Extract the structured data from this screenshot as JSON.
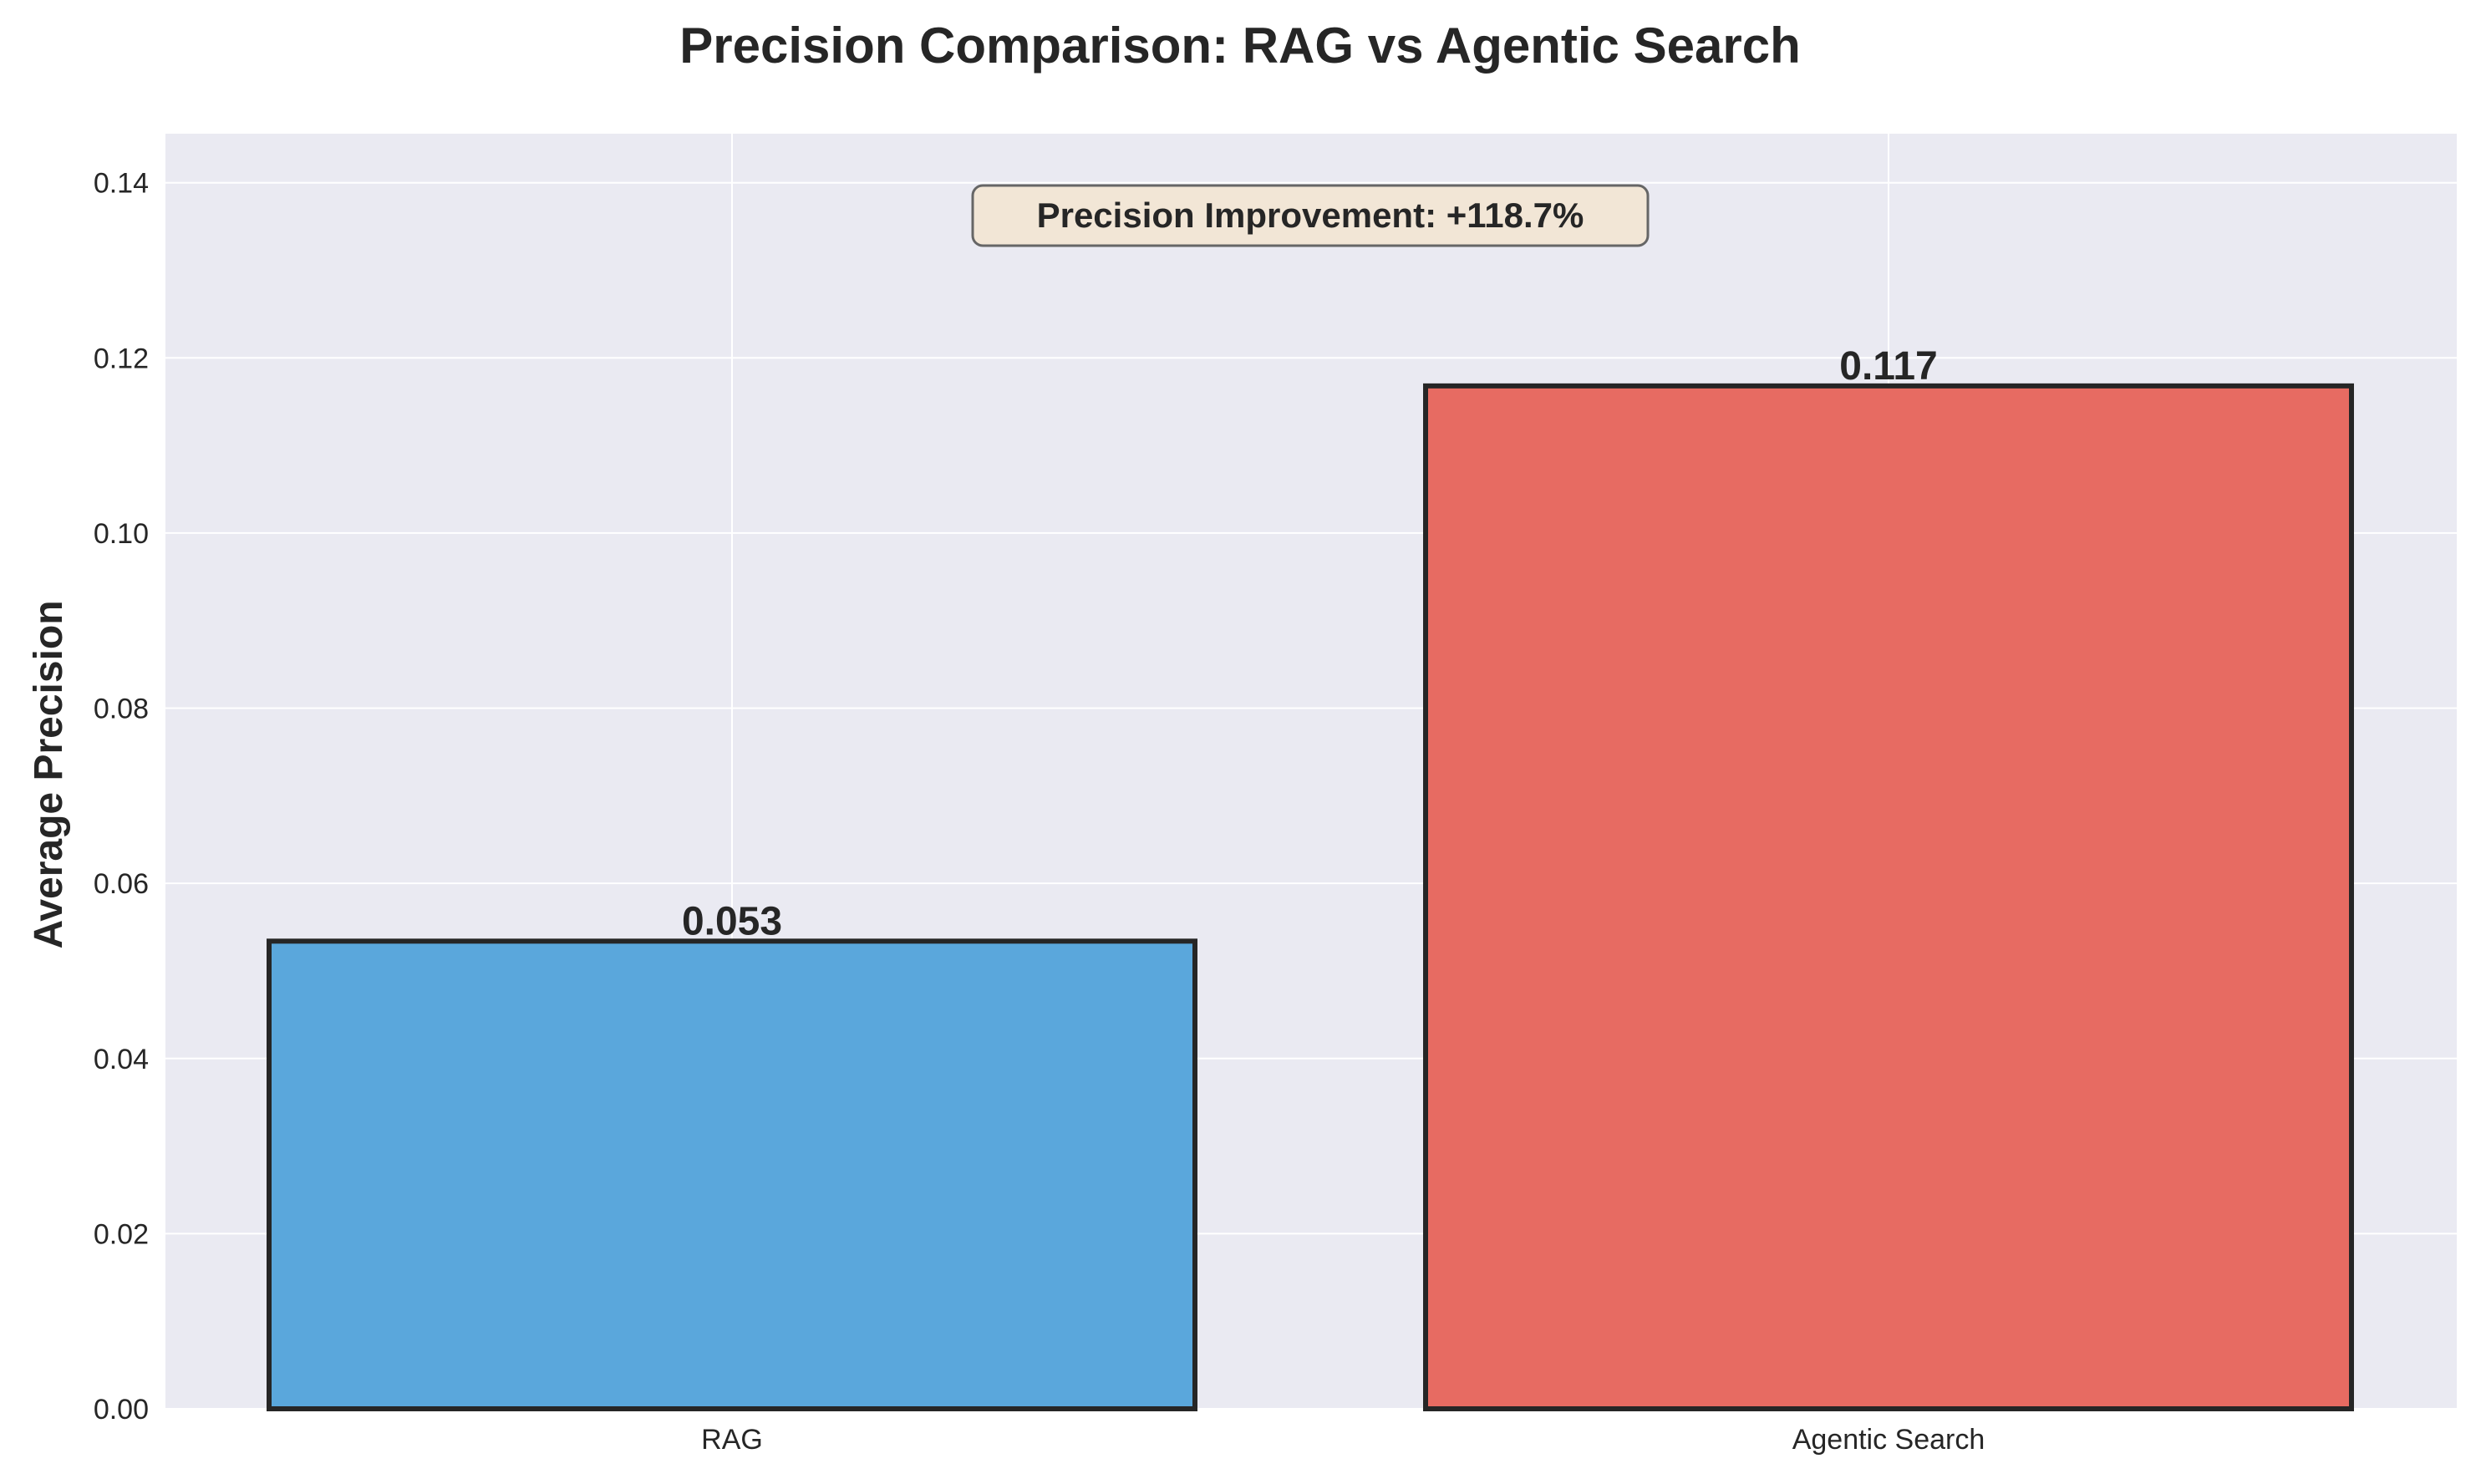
{
  "chart_data": {
    "type": "bar",
    "title": "Precision Comparison: RAG vs Agentic Search",
    "xlabel": "",
    "ylabel": "Average Precision",
    "categories": [
      "RAG",
      "Agentic Search"
    ],
    "values": [
      0.0534,
      0.1168
    ],
    "data_labels": [
      "0.053",
      "0.117"
    ],
    "colors": [
      "#5aa7dc",
      "#e76b62"
    ],
    "edge_color": "#262626",
    "ylim": [
      0,
      0.1456
    ],
    "yticks": [
      0.0,
      0.02,
      0.04,
      0.06,
      0.08,
      0.1,
      0.12,
      0.14
    ],
    "ytick_labels": [
      "0.00",
      "0.02",
      "0.04",
      "0.06",
      "0.08",
      "0.10",
      "0.12",
      "0.14"
    ],
    "grid": true,
    "background": "#eaeaf2",
    "annotation": {
      "text": "Precision Improvement: +118.7%",
      "box_fill": "#f2e6d6",
      "box_edge": "#666666"
    }
  }
}
